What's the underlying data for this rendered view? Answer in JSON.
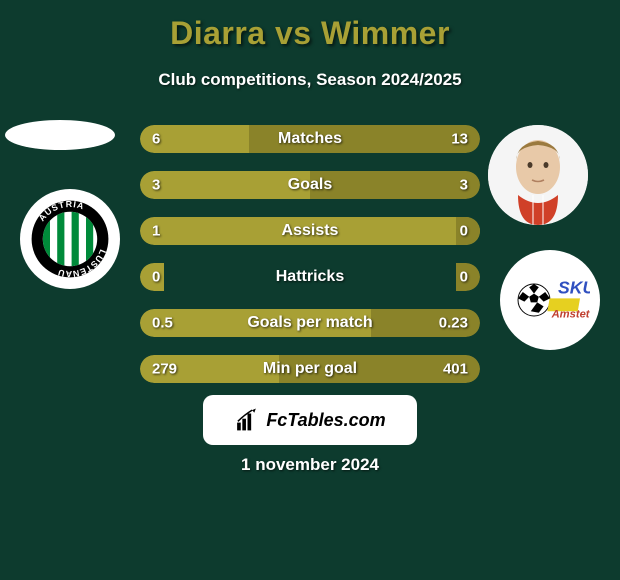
{
  "background_color": "#0d3b2e",
  "text_color": "#ffffff",
  "title_color": "#a8a035",
  "bar_left_color": "#a8a035",
  "bar_right_color": "#8a8329",
  "title": "Diarra vs Wimmer",
  "subtitle": "Club competitions, Season 2024/2025",
  "stats": [
    {
      "label": "Matches",
      "left_val": "6",
      "right_val": "13",
      "left_pct": 32,
      "right_pct": 68
    },
    {
      "label": "Goals",
      "left_val": "3",
      "right_val": "3",
      "left_pct": 50,
      "right_pct": 50
    },
    {
      "label": "Assists",
      "left_val": "1",
      "right_val": "0",
      "left_pct": 100,
      "right_pct": 7
    },
    {
      "label": "Hattricks",
      "left_val": "0",
      "right_val": "0",
      "left_pct": 7,
      "right_pct": 7
    },
    {
      "label": "Goals per match",
      "left_val": "0.5",
      "right_val": "0.23",
      "left_pct": 68,
      "right_pct": 32
    },
    {
      "label": "Min per goal",
      "left_val": "279",
      "right_val": "401",
      "left_pct": 41,
      "right_pct": 59
    }
  ],
  "branding_text": "FcTables.com",
  "date_text": "1 november 2024",
  "club_left": {
    "bg": "#ffffff",
    "stripes": "#008a3a",
    "ring_text": "AUSTRIA LUSTENAU",
    "ring_bg": "#000000",
    "ring_text_color": "#ffffff"
  },
  "club_right": {
    "bg": "#ffffff",
    "ball_color": "#000000",
    "text1": "SKU",
    "text1_color": "#3050c0",
    "text2": "Amstetten",
    "text2_color": "#c04030",
    "accent": "#e6d020"
  }
}
